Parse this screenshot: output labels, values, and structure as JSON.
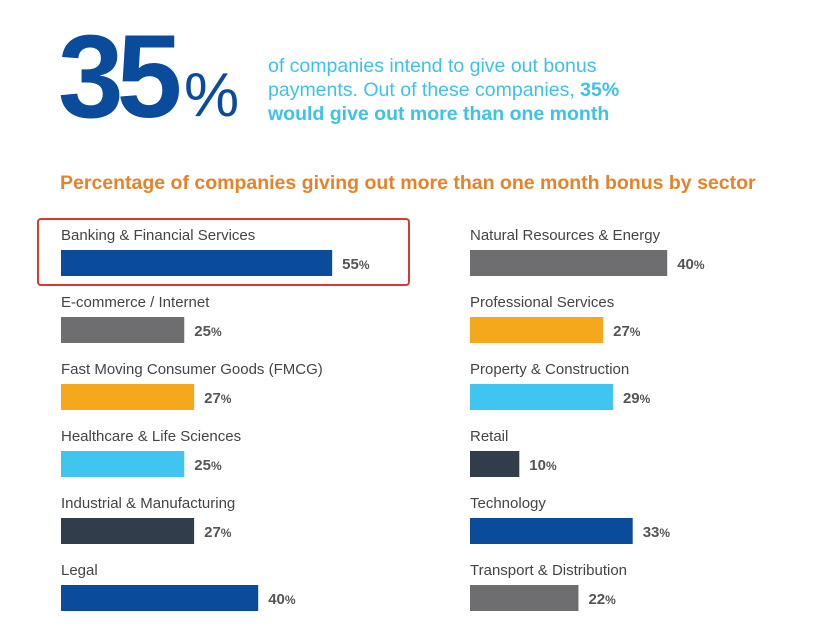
{
  "headline": {
    "number": "35",
    "percent_sign": "%",
    "text_plain": "of companies intend to give out bonus payments. Out of these companies, ",
    "text_bold_pct": "35%",
    "text_bold_rest": "would give out more than one month"
  },
  "colors": {
    "navy": "#0a4b9c",
    "gray": "#6e6e70",
    "orange": "#f5a81c",
    "sky": "#3fc5ef",
    "dark": "#313d4a",
    "title_orange": "#e5832b",
    "highlight_red": "#d83a32"
  },
  "chart_data": {
    "type": "bar",
    "orientation": "horizontal",
    "title": "Percentage of companies giving out more than one month bonus by sector",
    "unit": "%",
    "xlim": [
      0,
      55
    ],
    "highlighted": "Banking & Financial Services",
    "categories": [
      "Banking & Financial Services",
      "E-commerce / Internet",
      "Fast Moving Consumer Goods (FMCG)",
      "Healthcare & Life Sciences",
      "Industrial & Manufacturing",
      "Legal",
      "Natural Resources & Energy",
      "Professional Services",
      "Property & Construction",
      "Retail",
      "Technology",
      "Transport & Distribution"
    ],
    "values": [
      55,
      25,
      27,
      25,
      27,
      40,
      40,
      27,
      29,
      10,
      33,
      22
    ],
    "bar_colors": [
      "navy",
      "gray",
      "orange",
      "sky",
      "dark",
      "navy",
      "gray",
      "orange",
      "sky",
      "dark",
      "navy",
      "gray"
    ]
  }
}
